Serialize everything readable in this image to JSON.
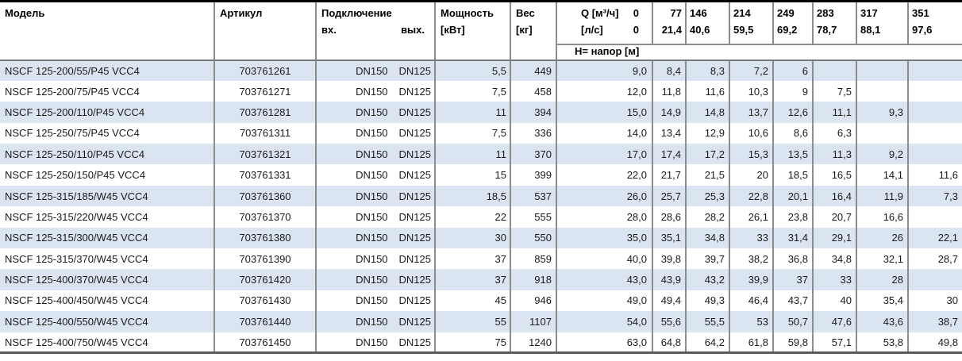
{
  "header": {
    "model": "Модель",
    "article": "Артикул",
    "connection": "Подключение",
    "connection_in": "вх.",
    "connection_out": "вых.",
    "power_l1": "Мощность",
    "power_l2": "[кВт]",
    "weight_l1": "Вес",
    "weight_l2": "[кг]",
    "q_l1_label": "Q [м³/ч]",
    "q_l1_value": "0",
    "q_l2_label": "[л/с]",
    "q_l2_value": "0",
    "head_label": "Н= напор [м]",
    "q_columns": [
      {
        "m3h": "77",
        "ls": "21,4"
      },
      {
        "m3h": "146",
        "ls": "40,6"
      },
      {
        "m3h": "214",
        "ls": "59,5"
      },
      {
        "m3h": "249",
        "ls": "69,2"
      },
      {
        "m3h": "283",
        "ls": "78,7"
      },
      {
        "m3h": "317",
        "ls": "88,1"
      },
      {
        "m3h": "351",
        "ls": "97,6"
      }
    ]
  },
  "rows": [
    {
      "model": "NSCF 125-200/55/P45 VCC4",
      "article": "703761261",
      "dn_in": "DN150",
      "dn_out": "DN125",
      "power": "5,5",
      "weight": "449",
      "head": [
        "9,0",
        "8,4",
        "8,3",
        "7,2",
        "6",
        "",
        "",
        ""
      ]
    },
    {
      "model": "NSCF 125-200/75/P45 VCC4",
      "article": "703761271",
      "dn_in": "DN150",
      "dn_out": "DN125",
      "power": "7,5",
      "weight": "458",
      "head": [
        "12,0",
        "11,8",
        "11,6",
        "10,3",
        "9",
        "7,5",
        "",
        ""
      ]
    },
    {
      "model": "NSCF 125-200/110/P45 VCC4",
      "article": "703761281",
      "dn_in": "DN150",
      "dn_out": "DN125",
      "power": "11",
      "weight": "394",
      "head": [
        "15,0",
        "14,9",
        "14,8",
        "13,7",
        "12,6",
        "11,1",
        "9,3",
        ""
      ]
    },
    {
      "model": "NSCF 125-250/75/P45 VCC4",
      "article": "703761311",
      "dn_in": "DN150",
      "dn_out": "DN125",
      "power": "7,5",
      "weight": "336",
      "head": [
        "14,0",
        "13,4",
        "12,9",
        "10,6",
        "8,6",
        "6,3",
        "",
        ""
      ]
    },
    {
      "model": "NSCF 125-250/110/P45 VCC4",
      "article": "703761321",
      "dn_in": "DN150",
      "dn_out": "DN125",
      "power": "11",
      "weight": "370",
      "head": [
        "17,0",
        "17,4",
        "17,2",
        "15,3",
        "13,5",
        "11,3",
        "9,2",
        ""
      ]
    },
    {
      "model": "NSCF 125-250/150/P45 VCC4",
      "article": "703761331",
      "dn_in": "DN150",
      "dn_out": "DN125",
      "power": "15",
      "weight": "399",
      "head": [
        "22,0",
        "21,7",
        "21,5",
        "20",
        "18,5",
        "16,5",
        "14,1",
        "11,6"
      ]
    },
    {
      "model": "NSCF 125-315/185/W45 VCC4",
      "article": "703761360",
      "dn_in": "DN150",
      "dn_out": "DN125",
      "power": "18,5",
      "weight": "537",
      "head": [
        "26,0",
        "25,7",
        "25,3",
        "22,8",
        "20,1",
        "16,4",
        "11,9",
        "7,3"
      ]
    },
    {
      "model": "NSCF 125-315/220/W45 VCC4",
      "article": "703761370",
      "dn_in": "DN150",
      "dn_out": "DN125",
      "power": "22",
      "weight": "555",
      "head": [
        "28,0",
        "28,6",
        "28,2",
        "26,1",
        "23,8",
        "20,7",
        "16,6",
        ""
      ]
    },
    {
      "model": "NSCF 125-315/300/W45 VCC4",
      "article": "703761380",
      "dn_in": "DN150",
      "dn_out": "DN125",
      "power": "30",
      "weight": "550",
      "head": [
        "35,0",
        "35,1",
        "34,8",
        "33",
        "31,4",
        "29,1",
        "26",
        "22,1"
      ]
    },
    {
      "model": "NSCF 125-315/370/W45 VCC4",
      "article": "703761390",
      "dn_in": "DN150",
      "dn_out": "DN125",
      "power": "37",
      "weight": "859",
      "head": [
        "40,0",
        "39,8",
        "39,7",
        "38,2",
        "36,8",
        "34,8",
        "32,1",
        "28,7"
      ]
    },
    {
      "model": "NSCF 125-400/370/W45 VCC4",
      "article": "703761420",
      "dn_in": "DN150",
      "dn_out": "DN125",
      "power": "37",
      "weight": "918",
      "head": [
        "43,0",
        "43,9",
        "43,2",
        "39,9",
        "37",
        "33",
        "28",
        ""
      ]
    },
    {
      "model": "NSCF 125-400/450/W45 VCC4",
      "article": "703761430",
      "dn_in": "DN150",
      "dn_out": "DN125",
      "power": "45",
      "weight": "946",
      "head": [
        "49,0",
        "49,4",
        "49,3",
        "46,4",
        "43,7",
        "40",
        "35,4",
        "30"
      ]
    },
    {
      "model": "NSCF 125-400/550/W45 VCC4",
      "article": "703761440",
      "dn_in": "DN150",
      "dn_out": "DN125",
      "power": "55",
      "weight": "1107",
      "head": [
        "54,0",
        "55,6",
        "55,5",
        "53",
        "50,7",
        "47,6",
        "43,6",
        "38,7"
      ]
    },
    {
      "model": "NSCF 125-400/750/W45 VCC4",
      "article": "703761450",
      "dn_in": "DN150",
      "dn_out": "DN125",
      "power": "75",
      "weight": "1240",
      "head": [
        "63,0",
        "64,8",
        "64,2",
        "61,8",
        "59,8",
        "57,1",
        "53,8",
        "49,8"
      ]
    }
  ],
  "colors": {
    "stripe": "#dbe5f1",
    "grid_line": "#8c8c8c",
    "top_border": "#000000",
    "bottom_border": "#5a5a5a"
  }
}
